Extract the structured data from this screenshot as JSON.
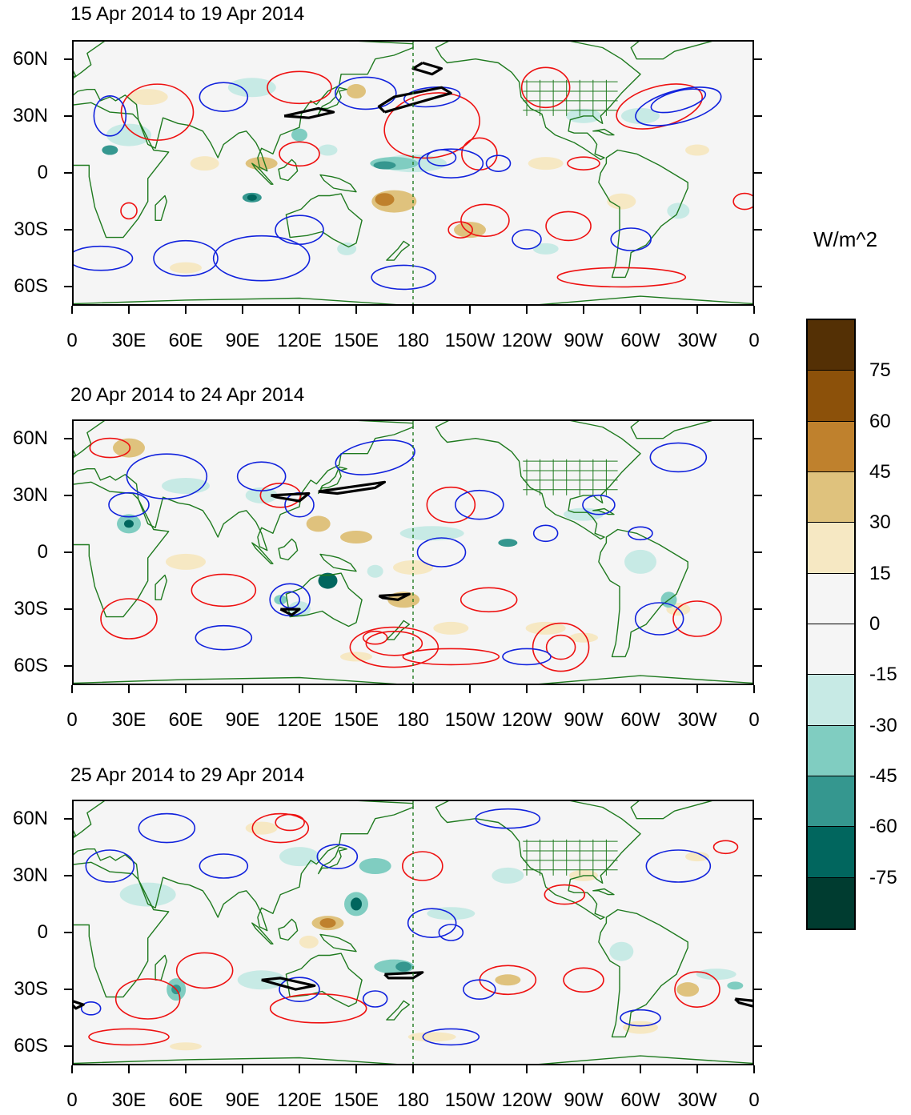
{
  "panels": [
    {
      "title": "15 Apr 2014 to 19 Apr 2014"
    },
    {
      "title": "20 Apr 2014 to 24 Apr 2014"
    },
    {
      "title": "25 Apr 2014 to 29 Apr 2014"
    }
  ],
  "lat_labels": [
    "60N",
    "30N",
    "0",
    "30S",
    "60S"
  ],
  "lon_labels": [
    "0",
    "30E",
    "60E",
    "90E",
    "120E",
    "150E",
    "180",
    "150W",
    "120W",
    "90W",
    "60W",
    "30W",
    "0"
  ],
  "colorbar": {
    "units": "W/m^2",
    "labels": [
      "75",
      "60",
      "45",
      "30",
      "15",
      "0",
      "-15",
      "-30",
      "-45",
      "-60",
      "-75"
    ],
    "colors": [
      "#543005",
      "#8c510a",
      "#bf812d",
      "#dfc27d",
      "#f6e8c3",
      "#f5f5f5",
      "#f5f5f5",
      "#c7eae5",
      "#80cdc1",
      "#35978f",
      "#01665e",
      "#003c30"
    ]
  },
  "colors": {
    "positive_contour": "#ee1111",
    "negative_contour": "#1122dd",
    "significance_contour": "#000000",
    "coastline": "#1f7a1f",
    "background": "#f5f5f5"
  }
}
